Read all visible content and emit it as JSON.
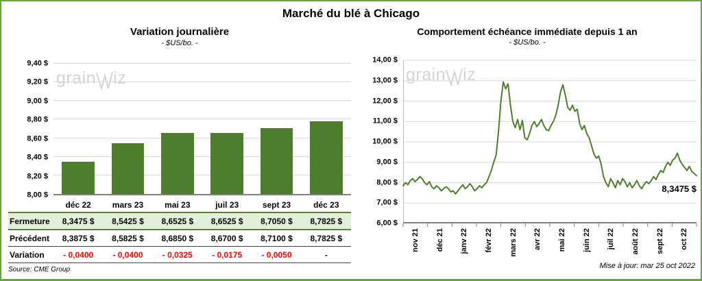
{
  "page": {
    "title": "Marché du blé à Chicago",
    "source": "Source: CME Group",
    "updated": "Mise à jour: mar 25 oct 2022",
    "watermark_left": "grain",
    "watermark_right": "iz"
  },
  "colors": {
    "green_accent": "#4e7d2e",
    "border_green": "#69a244",
    "table_green_bg": "#e2efda",
    "table_green_border": "#538135",
    "variation_red": "#ff0000",
    "grid_gray": "#d9d9d9",
    "axis_gray": "#7f7f7f"
  },
  "chart_data": [
    {
      "type": "bar",
      "title": "Variation  journalière",
      "subtitle": "- $US/bo. -",
      "categories": [
        "déc 22",
        "mars 23",
        "mai 23",
        "juil 23",
        "sept 23",
        "déc 23"
      ],
      "values": [
        8.3475,
        8.5425,
        8.6525,
        8.6525,
        8.705,
        8.7825
      ],
      "ylim": [
        8.0,
        9.4
      ],
      "ytick_step": 0.2,
      "ytick_labels": [
        "8,00 $",
        "8,20 $",
        "8,40 $",
        "8,60 $",
        "8,80 $",
        "9,00 $",
        "9,20 $",
        "9,40 $"
      ],
      "grid": true,
      "legend": "none"
    },
    {
      "type": "line",
      "title": "Comportement  échéance  immédiate depuis 1 an",
      "subtitle": "- $US/bo. -",
      "x_labels": [
        "nov 21",
        "déc 21",
        "janv 22",
        "févr 22",
        "mars 22",
        "avr 22",
        "mai 22",
        "juin 22",
        "juil 22",
        "août 22",
        "sept 22",
        "oct 22"
      ],
      "values": [
        7.85,
        8.0,
        7.9,
        8.1,
        8.2,
        8.05,
        8.15,
        8.3,
        8.2,
        8.0,
        7.9,
        8.05,
        7.8,
        7.7,
        7.85,
        7.75,
        7.6,
        7.7,
        7.8,
        7.7,
        7.55,
        7.6,
        7.45,
        7.6,
        7.75,
        7.9,
        7.7,
        7.8,
        7.95,
        7.8,
        7.6,
        7.7,
        7.85,
        7.75,
        7.9,
        8.0,
        8.3,
        8.6,
        9.0,
        9.35,
        10.5,
        12.0,
        12.94,
        12.6,
        12.85,
        11.8,
        11.0,
        10.7,
        11.1,
        10.6,
        11.05,
        10.2,
        10.1,
        10.4,
        10.8,
        11.0,
        10.75,
        10.9,
        11.1,
        10.8,
        10.6,
        10.55,
        10.8,
        11.0,
        11.3,
        11.8,
        12.45,
        12.8,
        12.3,
        11.7,
        11.55,
        11.8,
        11.5,
        11.6,
        10.9,
        10.6,
        10.8,
        10.4,
        10.2,
        9.8,
        9.4,
        9.2,
        9.3,
        8.9,
        8.3,
        8.0,
        7.8,
        8.2,
        8.0,
        7.75,
        8.1,
        7.9,
        8.2,
        8.05,
        7.8,
        8.0,
        7.75,
        7.9,
        8.1,
        7.85,
        7.7,
        7.9,
        8.05,
        7.95,
        8.1,
        8.3,
        8.15,
        8.4,
        8.6,
        8.5,
        8.8,
        9.0,
        8.85,
        9.1,
        9.2,
        9.45,
        9.1,
        8.9,
        8.75,
        8.6,
        8.8,
        8.55,
        8.45,
        8.3475
      ],
      "ylim": [
        6.0,
        14.0
      ],
      "ytick_step": 1.0,
      "ytick_labels": [
        "6,00 $",
        "7,00 $",
        "8,00 $",
        "9,00 $",
        "10,00 $",
        "11,00 $",
        "12,00 $",
        "13,00 $",
        "14,00 $"
      ],
      "end_label": "8,3475 $",
      "grid": true,
      "legend": "none"
    }
  ],
  "table": {
    "rows": [
      {
        "label": "Fermeture",
        "style": "green",
        "values": [
          "8,3475  $",
          "8,5425  $",
          "8,6525  $",
          "8,6525  $",
          "8,7050  $",
          "8,7825  $"
        ]
      },
      {
        "label": "Précédent",
        "style": "plain",
        "values": [
          "8,3875  $",
          "8,5825  $",
          "8,6850  $",
          "8,6700  $",
          "8,7100  $",
          "8,7825  $"
        ]
      },
      {
        "label": "Variation",
        "style": "red",
        "values": [
          "- 0,0400",
          "- 0,0400",
          "- 0,0325",
          "- 0,0175",
          "- 0,0050",
          "-"
        ]
      }
    ]
  }
}
